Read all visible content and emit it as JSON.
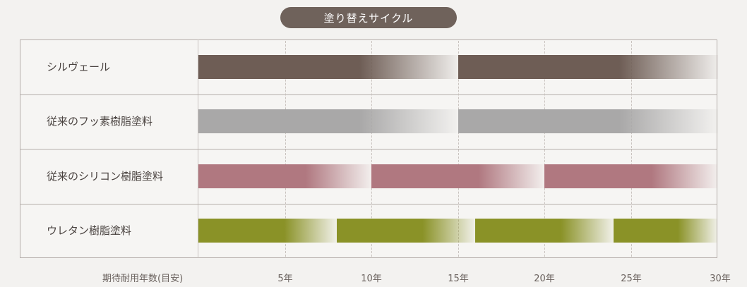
{
  "chart_data": {
    "type": "bar",
    "title": "塗り替えサイクル",
    "xlabel": "期待耐用年数(目安)",
    "xlim": [
      0,
      30
    ],
    "xticks": [
      5,
      10,
      15,
      20,
      25,
      30
    ],
    "tick_labels": [
      "5年",
      "10年",
      "15年",
      "20年",
      "25年",
      "30年"
    ],
    "grid": true,
    "series": [
      {
        "name": "シルヴェール",
        "cycle_years": 15,
        "color": "#6e5d55"
      },
      {
        "name": "従来のフッ素樹脂塗料",
        "cycle_years": 15,
        "color": "#a9a8a8"
      },
      {
        "name": "従来のシリコン樹脂塗料",
        "cycle_years": 10,
        "color": "#b07880"
      },
      {
        "name": "ウレタン樹脂塗料",
        "cycle_years": 8,
        "color": "#8a9227"
      }
    ]
  }
}
